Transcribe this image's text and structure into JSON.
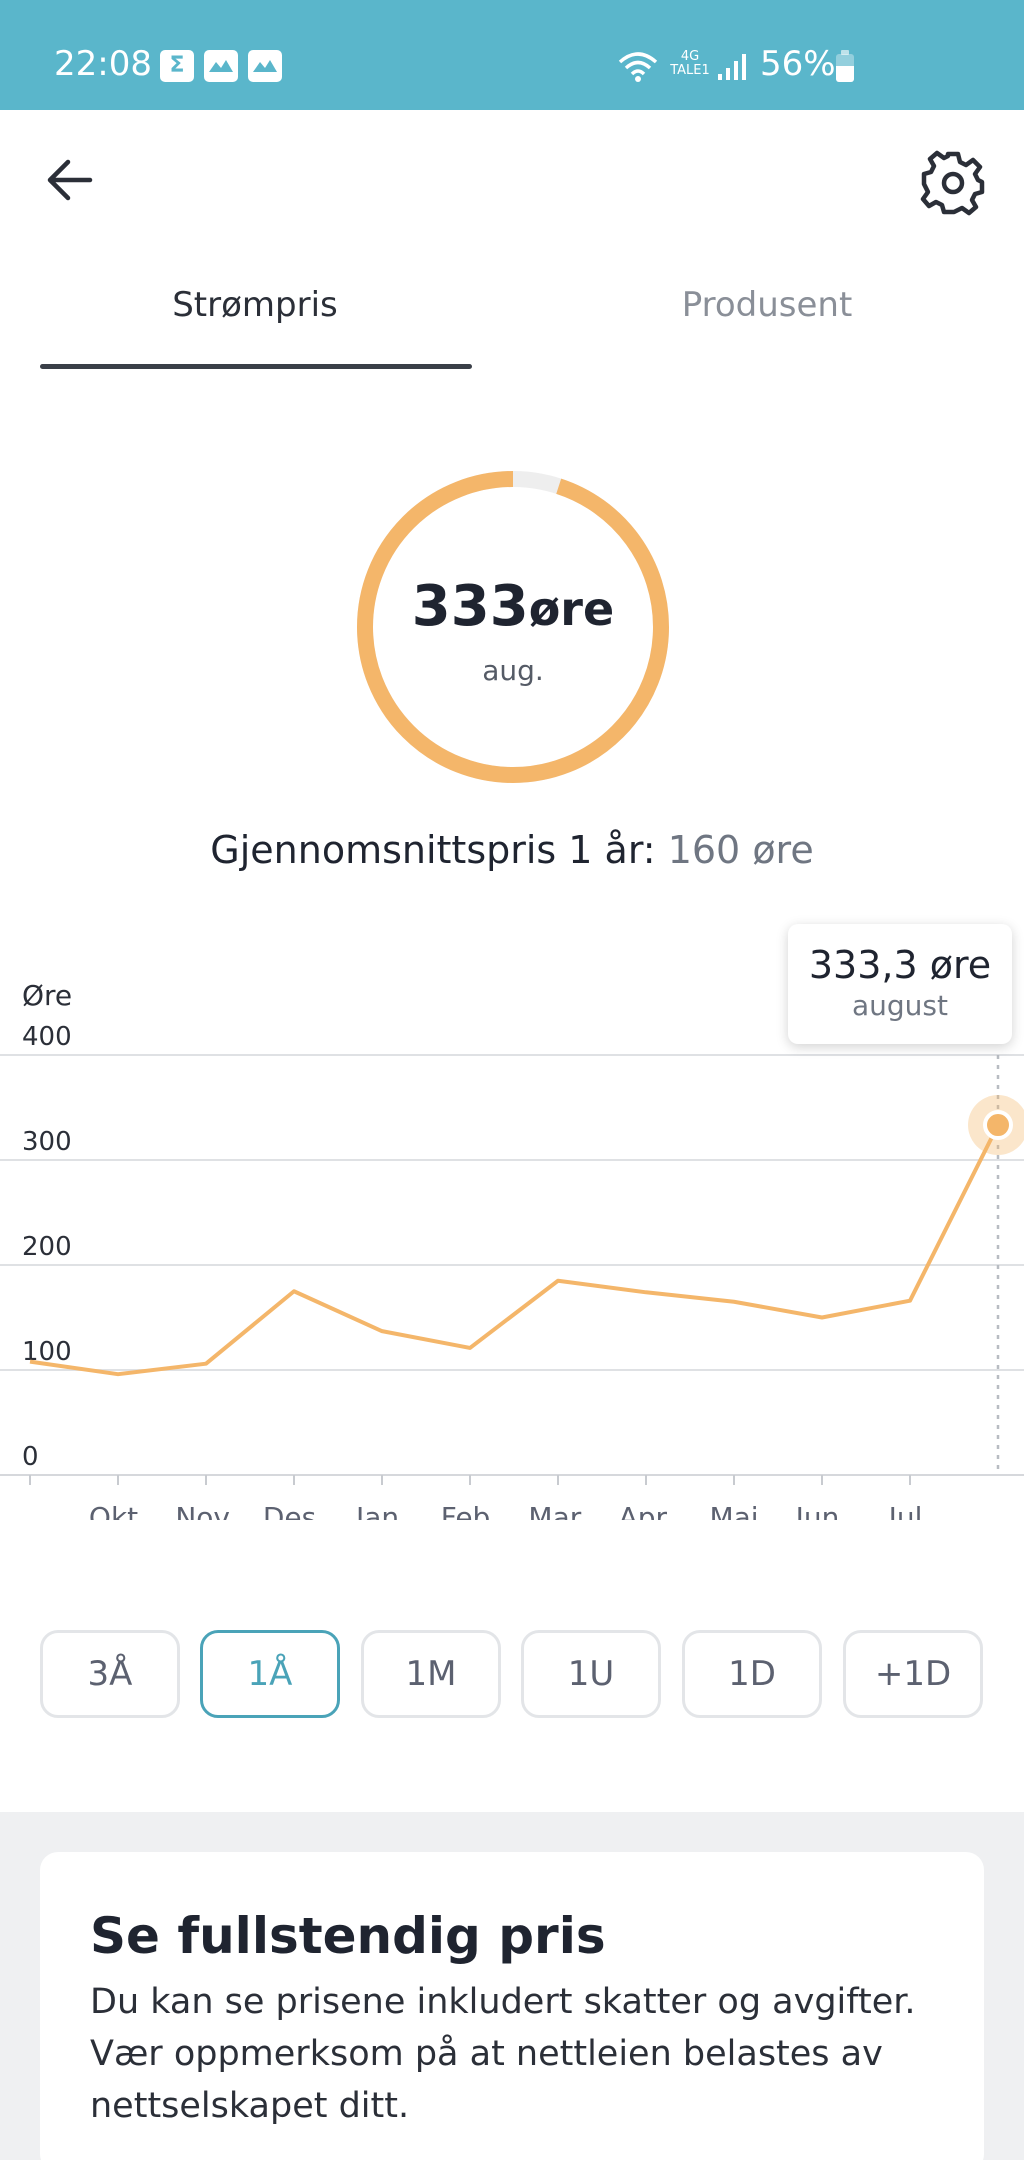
{
  "status_bar": {
    "time": "22:08",
    "notifications": [
      "sigma-icon",
      "app-icon",
      "app-icon"
    ],
    "network": "4G",
    "network_sub": "TALE1",
    "battery": "56%",
    "battery_level": 0.56
  },
  "tabs": [
    {
      "label": "Strømpris",
      "active": true
    },
    {
      "label": "Produsent",
      "active": false
    }
  ],
  "gauge": {
    "value": "333",
    "unit": "øre",
    "month": "aug.",
    "fill_fraction": 0.95,
    "color": "#f4b66a",
    "track_color": "#eeeeee"
  },
  "average": {
    "label": "Gjennomsnittspris 1 år:",
    "value": "160 øre"
  },
  "tooltip": {
    "value": "333,3 øre",
    "month": "august"
  },
  "chart_data": {
    "type": "line",
    "ylabel": "Øre",
    "ylim": [
      0,
      400
    ],
    "yticks": [
      0,
      100,
      200,
      300,
      400
    ],
    "categories": [
      "Okt.",
      "Nov.",
      "Des.",
      "Jan.",
      "Feb.",
      "Mar.",
      "Apr.",
      "Mai",
      "Jun.",
      "Jul."
    ],
    "series": [
      {
        "x": [
          0,
          1,
          2,
          3,
          4,
          5,
          6,
          7,
          8,
          9,
          10,
          11
        ],
        "values": [
          108,
          96,
          106,
          175,
          137,
          121,
          185,
          174,
          165,
          150,
          166,
          333.3
        ]
      }
    ],
    "highlight_index": 11,
    "line_color_low": "#6bcba5",
    "line_color_high": "#f4b66a",
    "grid": true
  },
  "ranges": [
    {
      "label": "3Å",
      "active": false
    },
    {
      "label": "1Å",
      "active": true
    },
    {
      "label": "1M",
      "active": false
    },
    {
      "label": "1U",
      "active": false
    },
    {
      "label": "1D",
      "active": false
    },
    {
      "label": "+1D",
      "active": false
    }
  ],
  "card": {
    "title": "Se fullstendig pris",
    "text": "Du kan se prisene inkludert skatter og avgifter. Vær oppmerksom på at nettleien belastes av nettselskapet ditt."
  }
}
